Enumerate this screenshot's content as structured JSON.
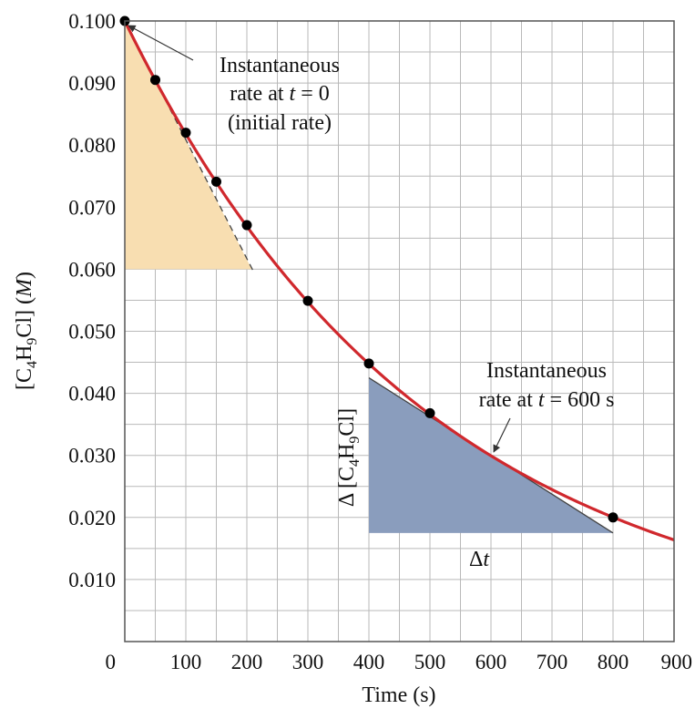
{
  "chart_data": {
    "type": "line",
    "xlabel": "Time (s)",
    "ylabel_parts": {
      "pre": "[C",
      "s1": "4",
      "mid": "H",
      "s2": "9",
      "post": "Cl] (",
      "unit": "M",
      "close": ")"
    },
    "xlim": [
      0,
      900
    ],
    "ylim": [
      0,
      0.1
    ],
    "x_ticks": [
      0,
      100,
      200,
      300,
      400,
      500,
      600,
      700,
      800,
      900
    ],
    "x_tick_labels": [
      "0",
      "100",
      "200",
      "300",
      "400",
      "500",
      "600",
      "700",
      "800",
      "900"
    ],
    "y_ticks": [
      0,
      0.01,
      0.02,
      0.03,
      0.04,
      0.05,
      0.06,
      0.07,
      0.08,
      0.09,
      0.1
    ],
    "y_tick_labels": [
      "",
      "0.010",
      "0.020",
      "0.030",
      "0.040",
      "0.050",
      "0.060",
      "0.070",
      "0.080",
      "0.090",
      "0.100"
    ],
    "grid_x": [
      50,
      100,
      150,
      200,
      250,
      300,
      350,
      400,
      450,
      500,
      550,
      600,
      650,
      700,
      750,
      800,
      850,
      900
    ],
    "grid_y": [
      0.005,
      0.01,
      0.015,
      0.02,
      0.025,
      0.03,
      0.035,
      0.04,
      0.045,
      0.05,
      0.055,
      0.06,
      0.065,
      0.07,
      0.075,
      0.08,
      0.085,
      0.09,
      0.095,
      0.1
    ],
    "grid": true,
    "series": [
      {
        "points": [
          [
            0,
            0.1
          ],
          [
            50,
            0.0905
          ],
          [
            100,
            0.082
          ],
          [
            150,
            0.0741
          ],
          [
            200,
            0.0671
          ],
          [
            300,
            0.0549
          ],
          [
            400,
            0.0448
          ],
          [
            500,
            0.0368
          ],
          [
            800,
            0.02
          ]
        ],
        "curve_rate_constant": 0.00201,
        "curve_x_end": 900,
        "color": "#d0282d",
        "marker_color": "#000000"
      }
    ],
    "tangent_t0": {
      "from": [
        0,
        0.1
      ],
      "to": [
        210,
        0.0598
      ],
      "triangle": [
        [
          0,
          0.1
        ],
        [
          0,
          0.06
        ],
        [
          208,
          0.06
        ]
      ],
      "fill": "#f8deb1",
      "dash": "7,5"
    },
    "tangent_t600": {
      "from": [
        400,
        0.0425
      ],
      "to": [
        800,
        0.0175
      ],
      "triangle": [
        [
          400,
          0.0425
        ],
        [
          400,
          0.0175
        ],
        [
          800,
          0.0175
        ]
      ],
      "fill": "#8a9dbd"
    },
    "annotations": {
      "t0": {
        "line1": "Instantaneous",
        "line2_pre": "rate at ",
        "line2_var": "t",
        "line2_post": " = 0",
        "line3": "(initial rate)"
      },
      "t600": {
        "line1": "Instantaneous",
        "line2_pre": "rate at ",
        "line2_var": "t",
        "line2_post": " = 600 s"
      },
      "delta_conc": {
        "pre": "Δ [C",
        "s1": "4",
        "mid": "H",
        "s2": "9",
        "post": "Cl]"
      },
      "delta_t": {
        "pre": "Δ",
        "var": "t"
      }
    }
  }
}
